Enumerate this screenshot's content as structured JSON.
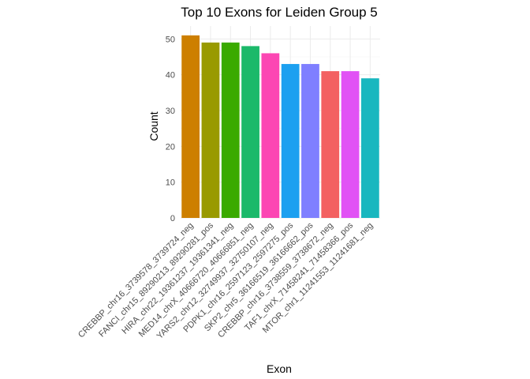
{
  "chart_data": {
    "type": "bar",
    "title": "Top 10 Exons for Leiden Group 5",
    "xlabel": "Exon",
    "ylabel": "Count",
    "categories": [
      "CREBBP_chr16_3739578_3739724_neg",
      "FANCI_chr15_89290213_89290281_pos",
      "HIRA_chr22_19361237_19361341_neg",
      "MED14_chrX_40666720_40666851_neg",
      "YARS2_chr12_32749937_32750107_neg",
      "PDPK1_chr16_2597123_2597275_pos",
      "SKP2_chr5_36166519_36166662_pos",
      "CREBBP_chr16_3738559_3738672_neg",
      "TAF1_chrX_71458241_71458366_pos",
      "MTOR_chr1_11241553_11241681_neg"
    ],
    "values": [
      51,
      49,
      49,
      48,
      46,
      43,
      43,
      41,
      41,
      39
    ],
    "colors": [
      "#CD7F00",
      "#999A00",
      "#3AAA00",
      "#1BB96A",
      "#FC46B3",
      "#1CA0F0",
      "#7F7FFF",
      "#F36161",
      "#E152F5",
      "#19B7BF"
    ],
    "ylim": [
      0,
      53.6
    ],
    "yticks": [
      0,
      10,
      20,
      30,
      40,
      50
    ],
    "grid": true,
    "legend": "none"
  }
}
